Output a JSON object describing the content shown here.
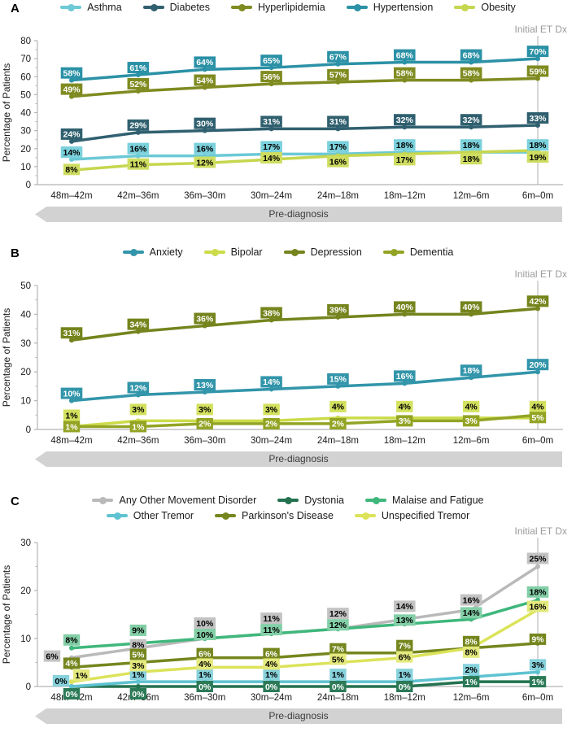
{
  "chart_data": [
    {
      "panel_label": "A",
      "type": "line",
      "unit": "%",
      "title": "",
      "ylabel": "Percentage of Patients",
      "xlabel_band": "Pre-diagnosis",
      "annotation": "Initial ET Dx",
      "annotation_color": "#9a9a9a",
      "categories": [
        "48m–42m",
        "42m–36m",
        "36m–30m",
        "30m–24m",
        "24m–18m",
        "18m–12m",
        "12m–6m",
        "6m–0m"
      ],
      "ylim": [
        0,
        80
      ],
      "ytick_step": 10,
      "grid": false,
      "legend_position": "top",
      "series": [
        {
          "name": "Asthma",
          "color": "#6cc9d6",
          "label_bg": "#7bd1dc",
          "label_text": "#000000",
          "values": [
            14,
            16,
            16,
            17,
            17,
            18,
            18,
            18
          ]
        },
        {
          "name": "Diabetes",
          "color": "#30606f",
          "label_bg": "#30606f",
          "label_text": "#ffffff",
          "values": [
            24,
            29,
            30,
            31,
            31,
            32,
            32,
            33
          ]
        },
        {
          "name": "Hyperlipidemia",
          "color": "#7f8b20",
          "label_bg": "#7f8b20",
          "label_text": "#ffffff",
          "values": [
            49,
            52,
            54,
            56,
            57,
            58,
            58,
            59
          ]
        },
        {
          "name": "Hypertension",
          "color": "#2b91a6",
          "label_bg": "#2b91a6",
          "label_text": "#ffffff",
          "values": [
            58,
            61,
            64,
            65,
            67,
            68,
            68,
            70
          ]
        },
        {
          "name": "Obesity",
          "color": "#c6d64e",
          "label_bg": "#cedd61",
          "label_text": "#000000",
          "values": [
            8,
            11,
            12,
            14,
            16,
            17,
            18,
            19
          ]
        }
      ]
    },
    {
      "panel_label": "B",
      "type": "line",
      "unit": "%",
      "title": "",
      "ylabel": "Percentage of Patients",
      "xlabel_band": "Pre-diagnosis",
      "annotation": "Initial ET Dx",
      "annotation_color": "#9a9a9a",
      "categories": [
        "48m–42m",
        "42m–36m",
        "36m–30m",
        "30m–24m",
        "24m–18m",
        "18m–12m",
        "12m–6m",
        "6m–0m"
      ],
      "ylim": [
        0,
        50
      ],
      "ytick_step": 10,
      "grid": false,
      "legend_position": "top",
      "series": [
        {
          "name": "Anxiety",
          "color": "#3295aa",
          "label_bg": "#3295aa",
          "label_text": "#ffffff",
          "values": [
            10,
            12,
            13,
            14,
            15,
            16,
            18,
            20
          ]
        },
        {
          "name": "Bipolar",
          "color": "#cbdb49",
          "label_bg": "#d3e15e",
          "label_text": "#000000",
          "values": [
            1,
            3,
            3,
            3,
            4,
            4,
            4,
            4
          ]
        },
        {
          "name": "Depression",
          "color": "#75841d",
          "label_bg": "#75841d",
          "label_text": "#ffffff",
          "values": [
            31,
            34,
            36,
            38,
            39,
            40,
            40,
            42
          ]
        },
        {
          "name": "Dementia",
          "color": "#93a424",
          "label_bg": "#93a424",
          "label_text": "#ffffff",
          "values": [
            1,
            1,
            2,
            2,
            2,
            3,
            3,
            5
          ]
        }
      ]
    },
    {
      "panel_label": "C",
      "type": "line",
      "unit": "%",
      "title": "",
      "ylabel": "Percentage of Patients",
      "xlabel_band": "Pre-diagnosis",
      "annotation": "Initial ET Dx",
      "annotation_color": "#9a9a9a",
      "categories": [
        "48m–42m",
        "42m–36m",
        "36m–30m",
        "30m–24m",
        "24m–18m",
        "18m–12m",
        "12m–6m",
        "6m–0m"
      ],
      "ylim": [
        0,
        30
      ],
      "ytick_step": 10,
      "grid": false,
      "legend_position": "top",
      "series": [
        {
          "name": "Any Other Movement Disorder",
          "color": "#b9b9b9",
          "label_bg": "#c3c3c3",
          "label_text": "#000000",
          "values": [
            6,
            8,
            10,
            11,
            12,
            14,
            16,
            25
          ]
        },
        {
          "name": "Dystonia",
          "color": "#23714f",
          "label_bg": "#2c7a57",
          "label_text": "#ffffff",
          "values": [
            0,
            0,
            0,
            0,
            0,
            0,
            1,
            1
          ]
        },
        {
          "name": "Malaise and Fatigue",
          "color": "#3fb77c",
          "label_bg": "#83cfa7",
          "label_text": "#000000",
          "values": [
            8,
            9,
            10,
            11,
            12,
            13,
            14,
            18
          ]
        },
        {
          "name": "Other Tremor",
          "color": "#5ec2d1",
          "label_bg": "#88d2dc",
          "label_text": "#000000",
          "values": [
            0,
            1,
            1,
            1,
            1,
            1,
            2,
            3
          ]
        },
        {
          "name": "Parkinson's Disease",
          "color": "#75861e",
          "label_bg": "#75861e",
          "label_text": "#ffffff",
          "values": [
            4,
            5,
            6,
            6,
            7,
            7,
            8,
            9
          ]
        },
        {
          "name": "Unspecified Tremor",
          "color": "#dce35a",
          "label_bg": "#e4e97e",
          "label_text": "#000000",
          "values": [
            1,
            3,
            4,
            4,
            5,
            6,
            8,
            16
          ]
        }
      ]
    }
  ]
}
